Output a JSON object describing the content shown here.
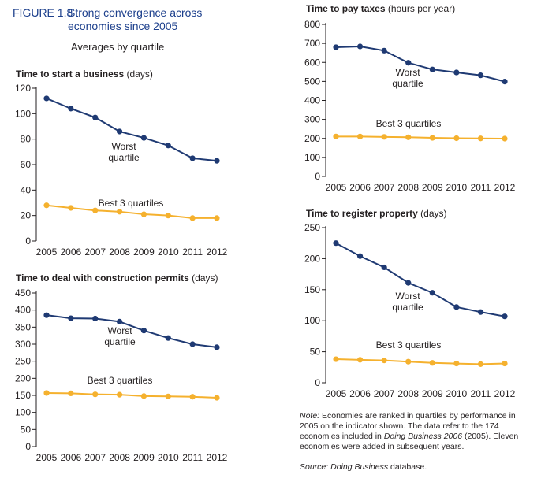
{
  "figure": {
    "label": "FIGURE 1.8",
    "title_line1": "Strong convergence across",
    "title_line2": "economies since 2005",
    "subtitle": "Averages by quartile"
  },
  "colors": {
    "worst": "#1f3a73",
    "best": "#f5b12e",
    "axis": "#231f20",
    "title": "#1c3f8c"
  },
  "chart_data": [
    {
      "id": "start_business",
      "type": "line",
      "title": "Time to start a business",
      "unit": "(days)",
      "categories": [
        "2005",
        "2006",
        "2007",
        "2008",
        "2009",
        "2010",
        "2011",
        "2012"
      ],
      "ylim": [
        0,
        120
      ],
      "yticks": [
        0,
        20,
        40,
        60,
        80,
        100,
        120
      ],
      "series": [
        {
          "name": "Worst quartile",
          "label_lines": [
            "Worst",
            "quartile"
          ],
          "values": [
            112,
            104,
            97,
            86,
            81,
            75,
            65,
            63
          ]
        },
        {
          "name": "Best 3 quartiles",
          "label_lines": [
            "Best 3 quartiles"
          ],
          "values": [
            28,
            26,
            24,
            23,
            21,
            20,
            18,
            18
          ]
        }
      ]
    },
    {
      "id": "construction_permits",
      "type": "line",
      "title": "Time to deal with construction permits",
      "unit": "(days)",
      "categories": [
        "2005",
        "2006",
        "2007",
        "2008",
        "2009",
        "2010",
        "2011",
        "2012"
      ],
      "ylim": [
        0,
        450
      ],
      "yticks": [
        0,
        50,
        100,
        150,
        200,
        250,
        300,
        350,
        400,
        450
      ],
      "series": [
        {
          "name": "Worst quartile",
          "label_lines": [
            "Worst",
            "quartile"
          ],
          "values": [
            385,
            376,
            375,
            366,
            340,
            318,
            300,
            291
          ]
        },
        {
          "name": "Best 3 quartiles",
          "label_lines": [
            "Best 3 quartiles"
          ],
          "values": [
            157,
            156,
            153,
            152,
            148,
            147,
            146,
            143
          ]
        }
      ]
    },
    {
      "id": "pay_taxes",
      "type": "line",
      "title": "Time to pay taxes",
      "unit": "(hours per year)",
      "categories": [
        "2005",
        "2006",
        "2007",
        "2008",
        "2009",
        "2010",
        "2011",
        "2012"
      ],
      "ylim": [
        0,
        800
      ],
      "yticks": [
        0,
        100,
        200,
        300,
        400,
        500,
        600,
        700,
        800
      ],
      "series": [
        {
          "name": "Worst quartile",
          "label_lines": [
            "Worst",
            "quartile"
          ],
          "values": [
            680,
            684,
            662,
            598,
            563,
            547,
            532,
            499
          ]
        },
        {
          "name": "Best 3 quartiles",
          "label_lines": [
            "Best 3 quartiles"
          ],
          "values": [
            210,
            210,
            208,
            206,
            203,
            201,
            200,
            199
          ]
        }
      ]
    },
    {
      "id": "register_property",
      "type": "line",
      "title": "Time to register property",
      "unit": "(days)",
      "categories": [
        "2005",
        "2006",
        "2007",
        "2008",
        "2009",
        "2010",
        "2011",
        "2012"
      ],
      "ylim": [
        0,
        250
      ],
      "yticks": [
        0,
        50,
        100,
        150,
        200,
        250
      ],
      "series": [
        {
          "name": "Worst quartile",
          "label_lines": [
            "Worst",
            "quartile"
          ],
          "values": [
            225,
            204,
            186,
            161,
            145,
            122,
            114,
            107
          ]
        },
        {
          "name": "Best 3 quartiles",
          "label_lines": [
            "Best 3 quartiles"
          ],
          "values": [
            38,
            37,
            36,
            34,
            32,
            31,
            30,
            31
          ]
        }
      ]
    }
  ],
  "note": {
    "label": "Note:",
    "text1": "Economies are ranked in quartiles by performance in 2005 on the indicator shown. The data refer to the 174 economies included in",
    "publication": "Doing Business 2006",
    "text2": "(2005). Eleven economies were added in subsequent years."
  },
  "source": {
    "label": "Source:",
    "publication": "Doing Business",
    "text": "database."
  }
}
